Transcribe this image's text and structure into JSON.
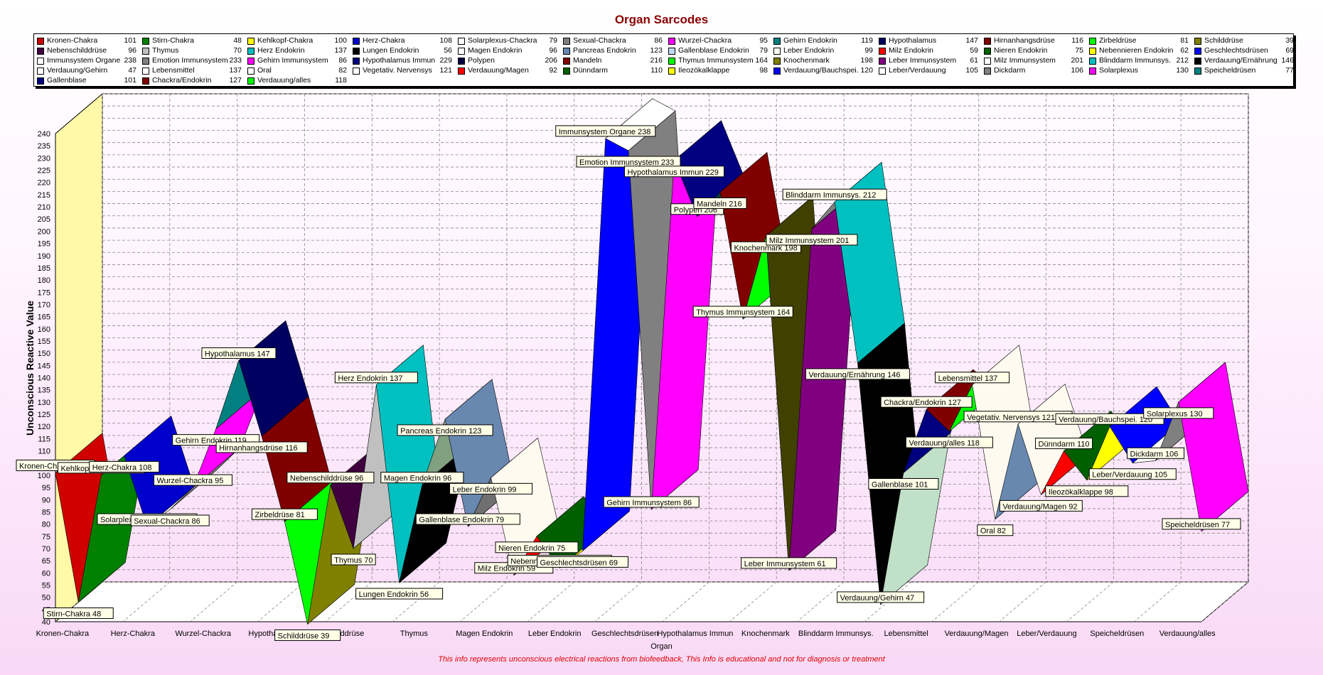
{
  "chart_data": {
    "type": "area",
    "title": "Organ Sarcodes",
    "xlabel": "Organ",
    "ylabel": "Unconscious Reactive Value",
    "footer": "This info represents unconscious electrical reactions from biofeedback, This Info is educational and  not  for diagnosis or treatment",
    "ylim": [
      40,
      240
    ],
    "ytick_step": 5,
    "grid": true,
    "legend_position": "top",
    "x_tick_labels": [
      "Kronen-Chakra",
      "Herz-Chakra",
      "Wurzel-Chackra",
      "Hypothalamus",
      "Schilddrüse",
      "Thymus",
      "Magen  Endokrin",
      "Leber  Endokrin",
      "Geschlechtsdrüsen",
      "Hypothalamus Immun",
      "Knochenmark",
      "Blinddarm Immunsys.",
      "Lebensmittel",
      "Verdauung/Magen",
      "Leber/Verdauung",
      "Speicheldrüsen",
      "Verdauung/alles"
    ],
    "series": [
      {
        "name": "Kronen-Chakra",
        "value": 101,
        "color": "#d00000"
      },
      {
        "name": "Stirn-Chakra",
        "value": 48,
        "color": "#008000"
      },
      {
        "name": "Kehlkopf-Chakra",
        "value": 100,
        "color": "#c8c800"
      },
      {
        "name": "Herz-Chakra",
        "value": 108,
        "color": "#0000cc"
      },
      {
        "name": "Solarplexus-Chackra",
        "value": 79,
        "color": "#ffffff"
      },
      {
        "name": "Sexual-Chackra",
        "value": 86,
        "color": "#808080"
      },
      {
        "name": "Wurzel-Chackra",
        "value": 95,
        "color": "#ff00ff"
      },
      {
        "name": "Gehirn Endokrin",
        "value": 119,
        "color": "#008080"
      },
      {
        "name": "Hypothalamus",
        "value": 147,
        "color": "#000060"
      },
      {
        "name": "Hirnanhangsdrüse",
        "value": 116,
        "color": "#800000"
      },
      {
        "name": "Zirbeldrüse",
        "value": 81,
        "color": "#00ff00"
      },
      {
        "name": "Schilddrüse",
        "value": 39,
        "color": "#808000"
      },
      {
        "name": "Nebenschilddrüse",
        "value": 96,
        "color": "#400040"
      },
      {
        "name": "Thymus",
        "value": 70,
        "color": "#c0c0c0"
      },
      {
        "name": "Herz  Endokrin",
        "value": 137,
        "color": "#00c0c0"
      },
      {
        "name": "Lungen  Endokrin",
        "value": 56,
        "color": "#000000"
      },
      {
        "name": "Magen  Endokrin",
        "value": 96,
        "color": "#80a080"
      },
      {
        "name": "Pancreas Endokrin",
        "value": 123,
        "color": "#6888b0"
      },
      {
        "name": "Gallenblase Endokrin",
        "value": 79,
        "color": "#707070"
      },
      {
        "name": "Leber  Endokrin",
        "value": 99,
        "color": "#fffaf0"
      },
      {
        "name": "Milz  Endokrin",
        "value": 59,
        "color": "#ff0000"
      },
      {
        "name": "Nieren Endokrin",
        "value": 75,
        "color": "#006000"
      },
      {
        "name": "Nebennieren Endokrin",
        "value": 62,
        "color": "#ffff00"
      },
      {
        "name": "Geschlechtsdrüsen",
        "value": 69,
        "color": "#0000ff"
      },
      {
        "name": "Immunsystem Organe",
        "value": 238,
        "color": "#ffffff"
      },
      {
        "name": "Emotion Immunsystem",
        "value": 233,
        "color": "#808080"
      },
      {
        "name": "Gehirn Immunsystem",
        "value": 86,
        "color": "#ff00ff"
      },
      {
        "name": "Hypothalamus Immun",
        "value": 229,
        "color": "#000080"
      },
      {
        "name": "Polypen",
        "value": 206,
        "color": "#004040"
      },
      {
        "name": "Mandeln",
        "value": 216,
        "color": "#800000"
      },
      {
        "name": "Thymus Immunsystem",
        "value": 164,
        "color": "#00ff00"
      },
      {
        "name": "Knochenmark",
        "value": 198,
        "color": "#404000"
      },
      {
        "name": "Leber  Immunsystem",
        "value": 61,
        "color": "#800080"
      },
      {
        "name": "Milz Immunsystem",
        "value": 201,
        "color": "#808080"
      },
      {
        "name": "Blinddarm Immunsys.",
        "value": 212,
        "color": "#00c0c0"
      },
      {
        "name": "Verdauung/Ernährung",
        "value": 146,
        "color": "#000000"
      },
      {
        "name": "Verdauung/Gehirn",
        "value": 47,
        "color": "#c0e0c8"
      },
      {
        "name": "Gallenblase",
        "value": 101,
        "color": "#000080"
      },
      {
        "name": "Chackra/Endokrin",
        "value": 127,
        "color": "#800000"
      },
      {
        "name": "Verdauung/alles",
        "value": 118,
        "color": "#00ff00"
      },
      {
        "name": "Lebensmittel",
        "value": 137,
        "color": "#fffaf0"
      },
      {
        "name": "Oral",
        "value": 82,
        "color": "#6888b0"
      },
      {
        "name": "Vegetativ. Nervensys",
        "value": 121,
        "color": "#fffaf0"
      },
      {
        "name": "Verdauung/Magen",
        "value": 92,
        "color": "#ff0000"
      },
      {
        "name": "Dünndarm",
        "value": 110,
        "color": "#006000"
      },
      {
        "name": "Ileozökalklappe",
        "value": 98,
        "color": "#ffff00"
      },
      {
        "name": "Verdauung/Bauchspei.",
        "value": 120,
        "color": "#0000ff"
      },
      {
        "name": "Leber/Verdauung",
        "value": 105,
        "color": "#ffffff"
      },
      {
        "name": "Dickdarm",
        "value": 106,
        "color": "#808080"
      },
      {
        "name": "Solarplexus",
        "value": 130,
        "color": "#ff00ff"
      },
      {
        "name": "Speicheldrüsen",
        "value": 77,
        "color": "#008080"
      }
    ]
  },
  "legend": {
    "items": [
      {
        "name": "Kronen-Chakra",
        "value": "101",
        "color": "#d00000"
      },
      {
        "name": "Stirn-Chakra",
        "value": "48",
        "color": "#008000"
      },
      {
        "name": "Kehlkopf-Chakra",
        "value": "100",
        "color": "#ffff00"
      },
      {
        "name": "Herz-Chakra",
        "value": "108",
        "color": "#0000cc"
      },
      {
        "name": "Solarplexus-Chackra",
        "value": "79",
        "color": "#ffffff"
      },
      {
        "name": "Sexual-Chackra",
        "value": "86",
        "color": "#808080"
      },
      {
        "name": "Wurzel-Chackra",
        "value": "95",
        "color": "#ff00ff"
      },
      {
        "name": "Gehirn Endokrin",
        "value": "119",
        "color": "#008080"
      },
      {
        "name": "Hypothalamus",
        "value": "147",
        "color": "#000060"
      },
      {
        "name": "Hirnanhangsdrüse",
        "value": "116",
        "color": "#800000"
      },
      {
        "name": "Zirbeldrüse",
        "value": "81",
        "color": "#00ff00"
      },
      {
        "name": "Schilddrüse",
        "value": "39",
        "color": "#808000"
      },
      {
        "name": "Nebenschilddrüse",
        "value": "96",
        "color": "#400040"
      },
      {
        "name": "Thymus",
        "value": "70",
        "color": "#c0c0c0"
      },
      {
        "name": "Herz  Endokrin",
        "value": "137",
        "color": "#00c0c0"
      },
      {
        "name": "Lungen  Endokrin",
        "value": "56",
        "color": "#000000"
      },
      {
        "name": "Magen  Endokrin",
        "value": "96",
        "color": "#ffffff"
      },
      {
        "name": "Pancreas Endokrin",
        "value": "123",
        "color": "#6888b0"
      },
      {
        "name": "Gallenblase Endokrin",
        "value": "79",
        "color": "#c0d8f0"
      },
      {
        "name": "Leber  Endokrin",
        "value": "99",
        "color": "#fffaf0"
      },
      {
        "name": "Milz  Endokrin",
        "value": "59",
        "color": "#ff0000"
      },
      {
        "name": "Nieren Endokrin",
        "value": "75",
        "color": "#006000"
      },
      {
        "name": "Nebennieren Endokrin",
        "value": "62",
        "color": "#ffff00"
      },
      {
        "name": "Geschlechtsdrüsen",
        "value": "69",
        "color": "#0000ff"
      },
      {
        "name": "Immunsystem Organe",
        "value": "238",
        "color": "#ffffff"
      },
      {
        "name": "Emotion Immunsystem",
        "value": "233",
        "color": "#808080"
      },
      {
        "name": "Gehirn Immunsystem",
        "value": "86",
        "color": "#ff00ff"
      },
      {
        "name": "Hypothalamus Immun",
        "value": "229",
        "color": "#000080"
      },
      {
        "name": "Polypen",
        "value": "206",
        "color": "#000040"
      },
      {
        "name": "Mandeln",
        "value": "216",
        "color": "#800000"
      },
      {
        "name": "Thymus Immunsystem",
        "value": "164",
        "color": "#00ff00"
      },
      {
        "name": "Knochenmark",
        "value": "198",
        "color": "#808000"
      },
      {
        "name": "Leber  Immunsystem",
        "value": "61",
        "color": "#800080"
      },
      {
        "name": "Milz Immunsystem",
        "value": "201",
        "color": "#ffffff"
      },
      {
        "name": "Blinddarm Immunsys.",
        "value": "212",
        "color": "#00c0c0"
      },
      {
        "name": "Verdauung/Ernährung",
        "value": "146",
        "color": "#000000"
      },
      {
        "name": "Verdauung/Gehirn",
        "value": "47",
        "color": "#ffffff"
      },
      {
        "name": "Lebensmittel",
        "value": "137",
        "color": "#ffffff"
      },
      {
        "name": "Oral",
        "value": "82",
        "color": "#ffffff"
      },
      {
        "name": "Vegetativ. Nervensys",
        "value": "121",
        "color": "#ffffff"
      },
      {
        "name": "Verdauung/Magen",
        "value": "92",
        "color": "#ff0000"
      },
      {
        "name": "Dünndarm",
        "value": "110",
        "color": "#006000"
      },
      {
        "name": "Ileozökalklappe",
        "value": "98",
        "color": "#ffff00"
      },
      {
        "name": "Verdauung/Bauchspei.",
        "value": "120",
        "color": "#0000ff"
      },
      {
        "name": "Leber/Verdauung",
        "value": "105",
        "color": "#ffffff"
      },
      {
        "name": "Dickdarm",
        "value": "106",
        "color": "#808080"
      },
      {
        "name": "Solarplexus",
        "value": "130",
        "color": "#ff00ff"
      },
      {
        "name": "Speicheldrüsen",
        "value": "77",
        "color": "#008080"
      },
      {
        "name": "Gallenblase",
        "value": "101",
        "color": "#000080"
      },
      {
        "name": "Chackra/Endokrin",
        "value": "127",
        "color": "#800000"
      },
      {
        "name": "Verdauung/alles",
        "value": "118",
        "color": "#00ff00"
      }
    ]
  }
}
